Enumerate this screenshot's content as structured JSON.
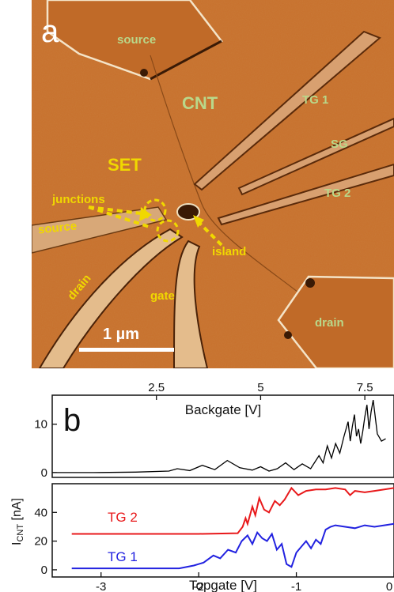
{
  "figure": {
    "panel_a": {
      "letter": "a",
      "labels": {
        "source_top": "source",
        "cnt": "CNT",
        "tg1": "TG 1",
        "sg": "SG",
        "set": "SET",
        "tg2": "TG 2",
        "junctions": "junctions",
        "source_left": "source",
        "island": "island",
        "drain_left": "drain",
        "gate": "gate",
        "drain_right": "drain"
      },
      "scale_bar": "1 µm",
      "colors": {
        "substrate": "#c8702c",
        "highlight": "#f0d800",
        "green_label": "#b9d88a"
      }
    },
    "panel_b": {
      "letter": "b",
      "y_axis_label": "I",
      "y_axis_subscript": "CNT",
      "y_axis_unit": " [nA]"
    }
  },
  "chart_data": [
    {
      "type": "line",
      "xlabel": "Backgate [V]",
      "ylabel": "I CNT [nA]",
      "xlim": [
        0,
        8.2
      ],
      "ylim": [
        -1,
        16
      ],
      "x_ticks": [
        2.5,
        5,
        7.5
      ],
      "x_tick_labels": [
        "2.5",
        "5",
        "7.5"
      ],
      "y_ticks": [
        0,
        10
      ],
      "y_tick_labels": [
        "0",
        "10"
      ],
      "x_axis_position": "top",
      "grid": false,
      "series": [
        {
          "color": "#000000",
          "x": [
            0,
            1.0,
            2.0,
            2.8,
            3.0,
            3.3,
            3.6,
            3.9,
            4.2,
            4.5,
            4.8,
            5.0,
            5.2,
            5.4,
            5.6,
            5.8,
            6.0,
            6.2,
            6.4,
            6.5,
            6.6,
            6.7,
            6.8,
            6.9,
            7.0,
            7.1,
            7.15,
            7.2,
            7.25,
            7.3,
            7.35,
            7.4,
            7.45,
            7.5,
            7.55,
            7.6,
            7.65,
            7.7,
            7.8,
            7.9,
            8.0
          ],
          "y": [
            0,
            0,
            0.1,
            0.3,
            0.8,
            0.4,
            1.5,
            0.6,
            2.5,
            1.0,
            0.5,
            1.2,
            0.3,
            0.8,
            2.0,
            0.6,
            1.8,
            0.8,
            3.5,
            2.0,
            5.5,
            3.0,
            6.0,
            4.0,
            7.5,
            10.5,
            6.5,
            9.5,
            12.0,
            7.5,
            9.0,
            6.0,
            8.5,
            11.5,
            14.0,
            9.0,
            12.5,
            15.0,
            8.0,
            6.5,
            7.0
          ]
        }
      ]
    },
    {
      "type": "line",
      "xlabel": "Topgate [V]",
      "ylabel": "I CNT [nA]",
      "xlim": [
        -3.5,
        0
      ],
      "ylim": [
        -5,
        60
      ],
      "x_ticks": [
        -3,
        -2,
        -1,
        0
      ],
      "x_tick_labels": [
        "-3",
        "-2",
        "-1",
        "0"
      ],
      "y_ticks": [
        0,
        20,
        40
      ],
      "y_tick_labels": [
        "0",
        "20",
        "40"
      ],
      "grid": false,
      "series": [
        {
          "name": "TG 2",
          "color": "#e8191b",
          "x": [
            -3.3,
            -2.0,
            -1.6,
            -1.55,
            -1.52,
            -1.5,
            -1.45,
            -1.42,
            -1.38,
            -1.33,
            -1.28,
            -1.22,
            -1.17,
            -1.12,
            -1.05,
            -0.98,
            -0.9,
            -0.8,
            -0.7,
            -0.6,
            -0.5,
            -0.45,
            -0.4,
            -0.3,
            -0.2,
            -0.1,
            0
          ],
          "y": [
            25,
            25,
            25.5,
            30,
            36,
            32,
            44,
            38,
            50,
            42,
            40,
            48,
            45,
            49,
            57,
            52,
            55,
            56,
            56,
            57,
            56,
            52,
            55,
            54,
            55,
            56,
            57
          ]
        },
        {
          "name": "TG 1",
          "color": "#2222e0",
          "x": [
            -3.3,
            -2.2,
            -2.05,
            -1.95,
            -1.85,
            -1.78,
            -1.7,
            -1.62,
            -1.56,
            -1.5,
            -1.45,
            -1.4,
            -1.35,
            -1.3,
            -1.25,
            -1.2,
            -1.15,
            -1.1,
            -1.05,
            -1.0,
            -0.95,
            -0.9,
            -0.85,
            -0.8,
            -0.75,
            -0.7,
            -0.65,
            -0.6,
            -0.5,
            -0.4,
            -0.3,
            -0.2,
            -0.1,
            0
          ],
          "y": [
            1,
            1,
            3,
            5,
            10,
            8,
            14,
            12,
            20,
            24,
            18,
            26,
            22,
            20,
            25,
            14,
            18,
            4,
            2,
            12,
            16,
            20,
            15,
            21,
            18,
            28,
            30,
            31,
            30,
            29,
            31,
            30,
            31,
            32
          ]
        }
      ]
    }
  ]
}
